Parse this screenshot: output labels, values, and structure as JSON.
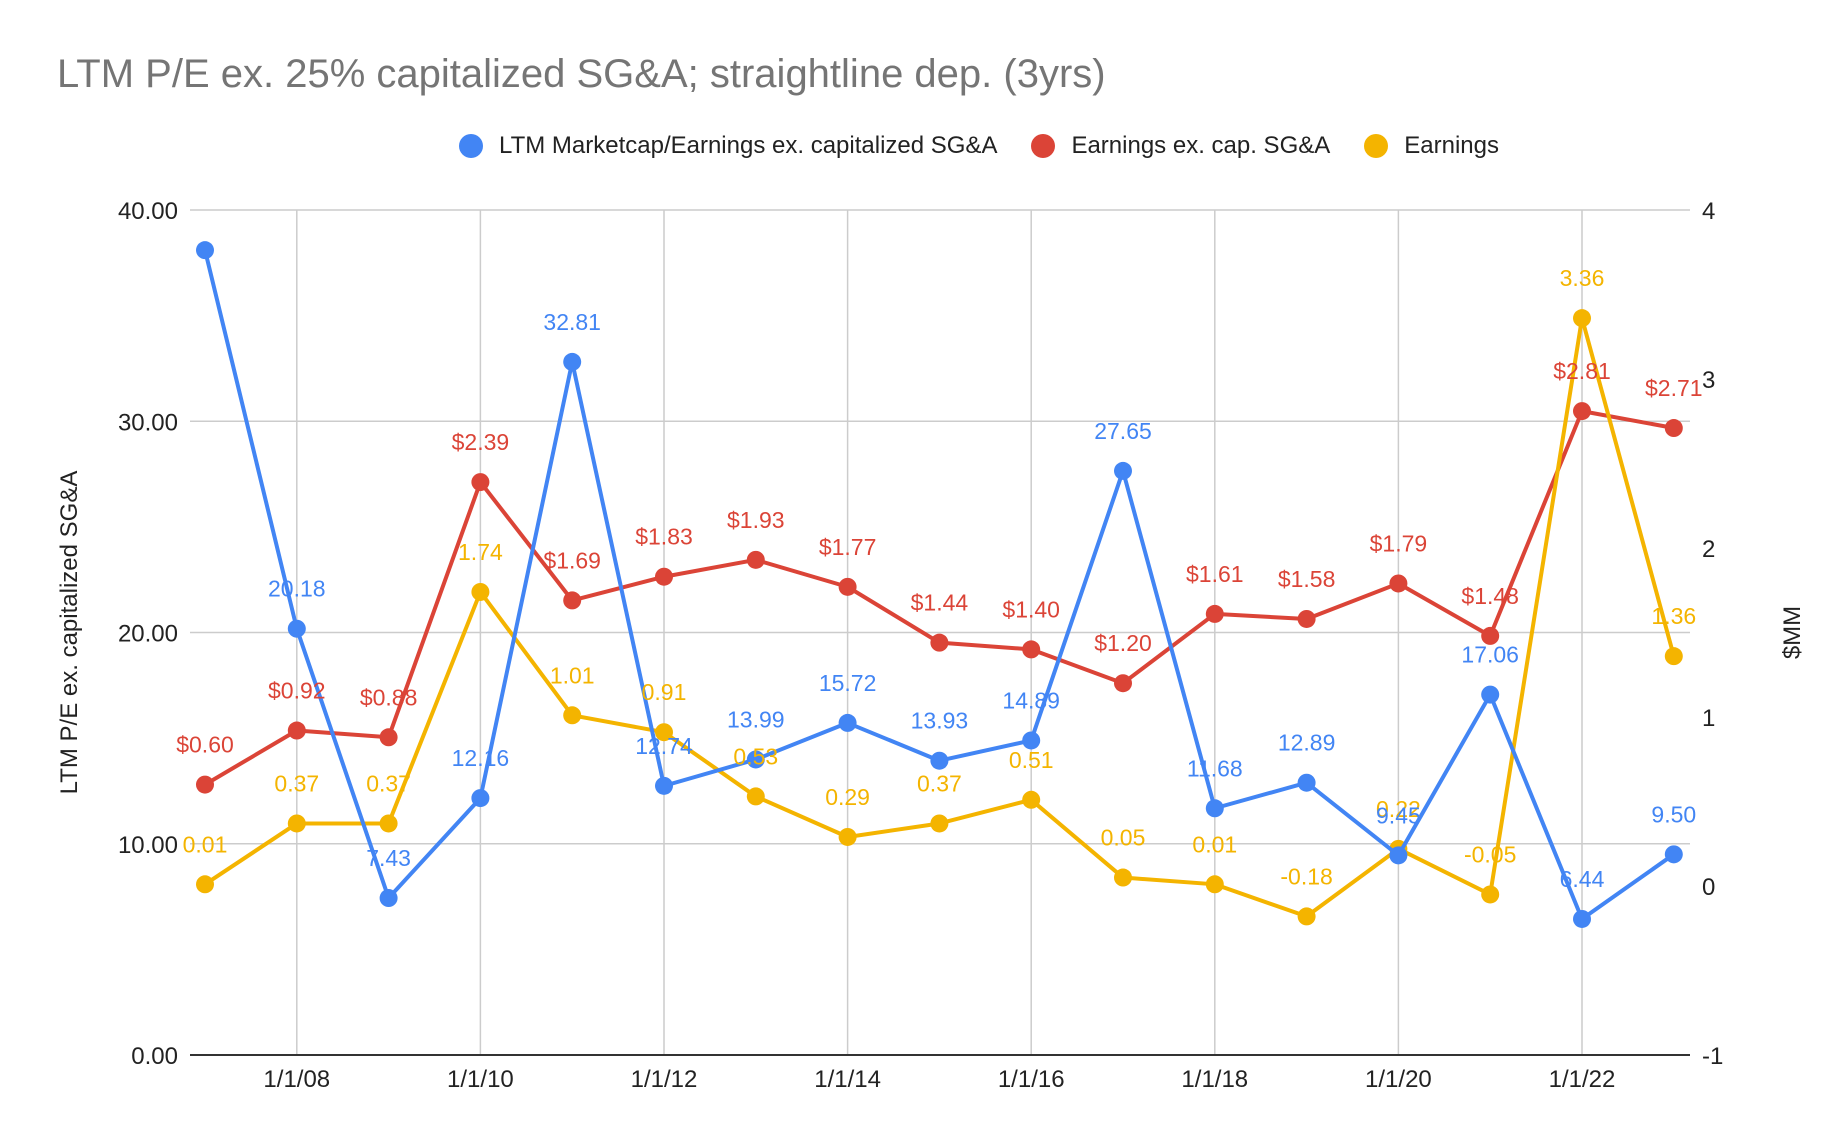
{
  "chart_data": {
    "type": "line",
    "title": "LTM P/E ex. 25% capitalized SG&A; straightline dep. (3yrs)",
    "ylabel": "LTM P/E ex. capitalized SG&A",
    "y2label": "$MM",
    "xlabel": "",
    "ylim": [
      0,
      40
    ],
    "y2lim": [
      -1,
      4
    ],
    "y_ticks": [
      "0.00",
      "10.00",
      "20.00",
      "30.00",
      "40.00"
    ],
    "y2_ticks": [
      "-1",
      "0",
      "1",
      "2",
      "3",
      "4"
    ],
    "x_ticks": [
      "1/1/08",
      "1/1/10",
      "1/1/12",
      "1/1/14",
      "1/1/16",
      "1/1/18",
      "1/1/20",
      "1/1/22"
    ],
    "x": [
      "2007",
      "2008",
      "2009",
      "2010",
      "2011",
      "2012",
      "2013",
      "2014",
      "2015",
      "2016",
      "2017",
      "2018",
      "2019",
      "2020",
      "2021",
      "2022",
      "2023"
    ],
    "grid": true,
    "legend_position": "top",
    "series": [
      {
        "name": "LTM Marketcap/Earnings ex. capitalized SG&A",
        "axis": "left",
        "color": "#4285F4",
        "values": [
          38.1,
          20.18,
          7.43,
          12.16,
          32.81,
          12.74,
          13.99,
          15.72,
          13.93,
          14.89,
          27.65,
          11.68,
          12.89,
          9.45,
          17.06,
          6.44,
          9.5
        ],
        "labels": [
          "",
          "20.18",
          "7.43",
          "12.16",
          "32.81",
          "12.74",
          "13.99",
          "15.72",
          "13.93",
          "14.89",
          "27.65",
          "11.68",
          "12.89",
          "9.45",
          "17.06",
          "6.44",
          "9.50"
        ]
      },
      {
        "name": "Earnings ex. cap. SG&A",
        "axis": "right",
        "color": "#DB4437",
        "values": [
          0.6,
          0.92,
          0.88,
          2.39,
          1.69,
          1.83,
          1.93,
          1.77,
          1.44,
          1.4,
          1.2,
          1.61,
          1.58,
          1.79,
          1.48,
          2.81,
          2.71
        ],
        "labels": [
          "$0.60",
          "$0.92",
          "$0.88",
          "$2.39",
          "$1.69",
          "$1.83",
          "$1.93",
          "$1.77",
          "$1.44",
          "$1.40",
          "$1.20",
          "$1.61",
          "$1.58",
          "$1.79",
          "$1.48",
          "$2.81",
          "$2.71"
        ]
      },
      {
        "name": "Earnings",
        "axis": "right",
        "color": "#F4B400",
        "values": [
          0.01,
          0.37,
          0.37,
          1.74,
          1.01,
          0.91,
          0.53,
          0.29,
          0.37,
          0.51,
          0.05,
          0.01,
          -0.18,
          0.22,
          -0.05,
          3.36,
          1.36
        ],
        "labels": [
          "0.01",
          "0.37",
          "0.37",
          "1.74",
          "1.01",
          "0.91",
          "0.53",
          "0.29",
          "0.37",
          "0.51",
          "0.05",
          "0.01",
          "-0.18",
          "0.22",
          "-0.05",
          "3.36",
          "1.36"
        ]
      }
    ]
  }
}
